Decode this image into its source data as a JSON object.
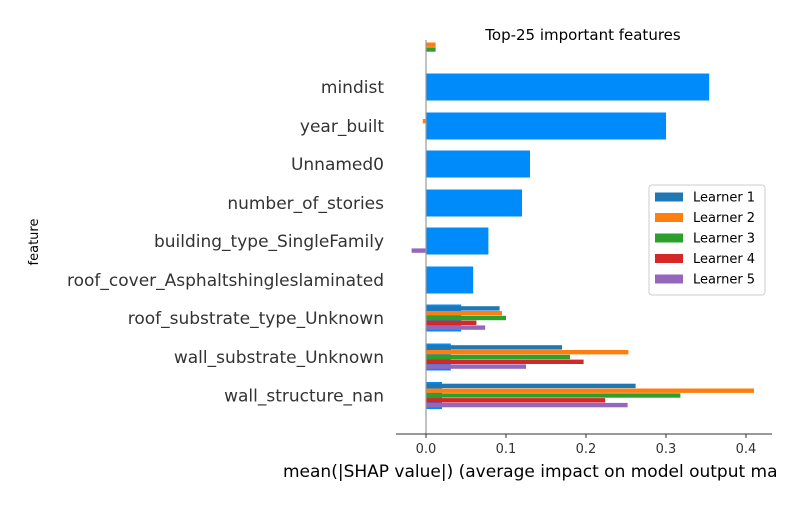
{
  "chart_data": {
    "type": "bar",
    "title": "Top-25 important features",
    "xlabel": "mean(|SHAP value|) (average impact on model output ma",
    "ylabel": "feature",
    "xlim": [
      -0.038,
      0.43
    ],
    "xticks": [
      {
        "value": 0,
        "label": "0.0"
      },
      {
        "value": 0.1,
        "label": "0.1"
      },
      {
        "value": 0.2,
        "label": "0.2"
      },
      {
        "value": 0.3,
        "label": "0.3"
      },
      {
        "value": 0.4,
        "label": "0.4"
      }
    ],
    "categories": [
      "",
      "mindist",
      "year_built",
      "Unnamed0",
      "number_of_stories",
      "building_type_SingleFamily",
      "roof_cover_Asphaltshingleslaminated",
      "roof_substrate_type_Unknown",
      "wall_substrate_Unknown",
      "wall_structure_nan"
    ],
    "overall": {
      "name": "",
      "color": "#008bfb",
      "values": [
        0.0,
        0.354,
        0.3,
        0.13,
        0.12,
        0.078,
        0.059,
        0.044,
        0.031,
        0.02
      ]
    },
    "series": [
      {
        "name": "Learner 1",
        "color": "#1f77b4",
        "values": [
          0.0,
          0.0,
          0.0,
          0.0,
          0.0,
          0.0,
          0.0,
          0.092,
          0.17,
          0.262
        ]
      },
      {
        "name": "Learner 2",
        "color": "#ff7f0e",
        "values": [
          0.012,
          0.0,
          -0.004,
          0.0,
          0.0,
          0.0,
          0.0,
          0.095,
          0.253,
          0.41
        ]
      },
      {
        "name": "Learner 3",
        "color": "#2ca02c",
        "values": [
          0.012,
          0.0,
          0.0,
          0.0,
          0.0,
          0.0,
          0.0,
          0.1,
          0.18,
          0.318
        ]
      },
      {
        "name": "Learner 4",
        "color": "#d62728",
        "values": [
          0.0,
          0.0,
          0.0,
          0.0,
          0.0,
          0.0,
          0.0,
          0.063,
          0.197,
          0.224
        ]
      },
      {
        "name": "Learner 5",
        "color": "#9467bd",
        "values": [
          0.0,
          0.0,
          0.0,
          0.0,
          0.0,
          -0.018,
          0.0,
          0.074,
          0.125,
          0.252
        ]
      }
    ],
    "legend": {
      "position": "right"
    },
    "grid": false
  }
}
